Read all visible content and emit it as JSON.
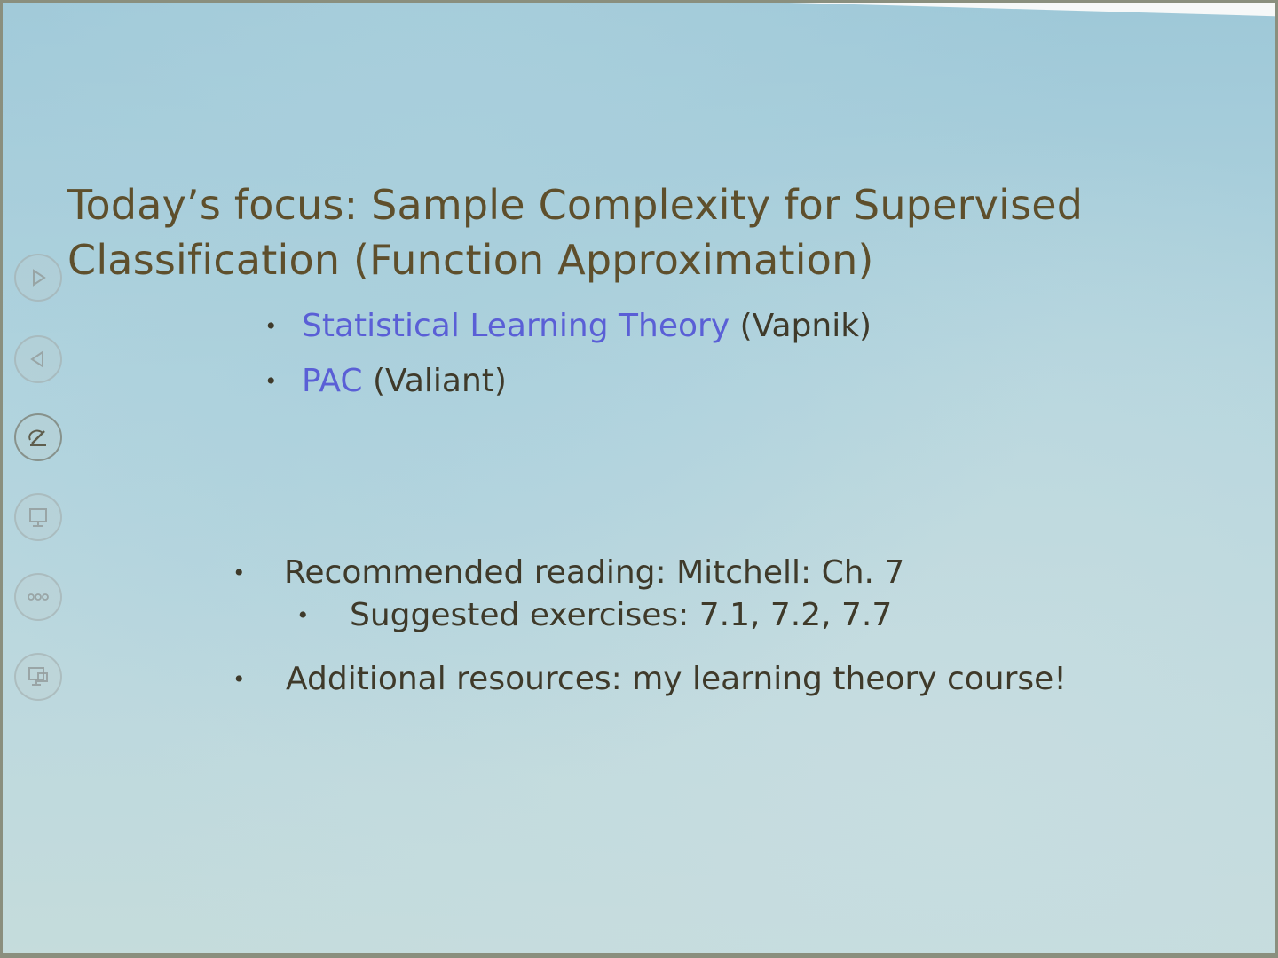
{
  "slide": {
    "title_line1": "Today’s focus: Sample Complexity for Supervised",
    "title_line2": "Classification (Function Approximation)",
    "sub_bullets": [
      {
        "link": "Statistical Learning Theory",
        "rest": " (Vapnik)"
      },
      {
        "link": "PAC",
        "rest": " (Valiant)"
      }
    ],
    "reading": "Recommended reading: Mitchell: Ch. 7",
    "exercises": "Suggested exercises: 7.1, 7.2, 7.7",
    "resources": "Additional resources: my learning theory course!",
    "bullet_char": "•"
  },
  "controls": {
    "items": [
      {
        "icon": "play-next-icon"
      },
      {
        "icon": "play-previous-icon"
      },
      {
        "icon": "pen-icon"
      },
      {
        "icon": "slide-menu-icon"
      },
      {
        "icon": "more-options-icon"
      },
      {
        "icon": "screen-icon"
      }
    ]
  },
  "colors": {
    "title": "#5e4f2c",
    "body": "#3f3a2a",
    "link": "#5a5fd6",
    "background": "#b2d4de"
  }
}
